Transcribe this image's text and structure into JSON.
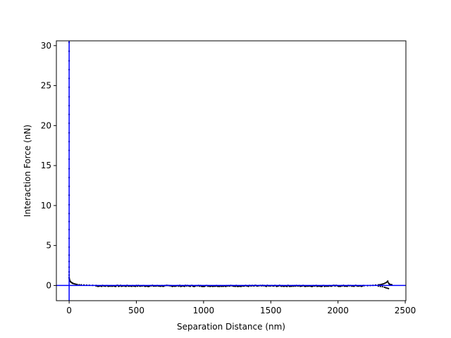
{
  "chart_data": {
    "type": "scatter",
    "title": "",
    "xlabel": "Separation Distance (nm)",
    "ylabel": "Interaction Force (nN)",
    "xlim": [
      -95,
      2505
    ],
    "ylim": [
      -1.9,
      30.6
    ],
    "xticks": [
      0,
      500,
      1000,
      1500,
      2000,
      2500
    ],
    "yticks": [
      0,
      5,
      10,
      15,
      20,
      25,
      30
    ],
    "grid": false,
    "reference_lines": {
      "x": 0,
      "y": 0,
      "color": "#0000ff"
    },
    "marker_color": "#000000",
    "approach_curve": {
      "x": [
        0,
        0,
        0,
        0,
        0,
        0,
        0,
        0,
        0,
        0,
        0,
        0,
        0,
        0,
        0,
        0,
        0,
        0,
        0,
        0,
        0,
        0,
        0,
        0,
        0,
        0,
        0,
        0,
        0,
        0,
        1,
        2,
        4,
        7,
        10,
        15,
        20,
        25,
        30,
        40,
        50,
        60,
        75,
        90,
        110,
        130,
        150,
        175,
        200
      ],
      "y": [
        30.4,
        29.3,
        28.1,
        27.0,
        25.9,
        24.8,
        23.6,
        22.5,
        21.4,
        20.3,
        19.1,
        18.0,
        16.9,
        15.8,
        14.6,
        13.5,
        12.4,
        11.3,
        10.1,
        9.0,
        8.0,
        7.0,
        5.9,
        4.8,
        3.8,
        3.0,
        2.3,
        1.7,
        1.3,
        1.0,
        0.85,
        0.75,
        0.65,
        0.55,
        0.48,
        0.4,
        0.34,
        0.3,
        0.25,
        0.2,
        0.16,
        0.13,
        0.1,
        0.08,
        0.06,
        0.04,
        0.03,
        0.02,
        0.01
      ]
    },
    "baseline": {
      "x_start": 200,
      "x_end": 2200,
      "y_mean": -0.05,
      "y_jitter": 0.07
    },
    "retract_tail": {
      "x": [
        2220,
        2240,
        2260,
        2280,
        2300,
        2310,
        2320,
        2330,
        2340,
        2350,
        2360,
        2365,
        2370,
        2375,
        2380,
        2385,
        2390,
        2395,
        2400,
        2300,
        2315,
        2330,
        2345,
        2355,
        2365,
        2375
      ],
      "y": [
        -0.02,
        0.0,
        0.02,
        0.05,
        0.08,
        0.1,
        0.13,
        0.17,
        0.22,
        0.3,
        0.38,
        0.45,
        0.55,
        0.35,
        0.2,
        0.15,
        0.12,
        0.1,
        0.1,
        -0.08,
        -0.12,
        -0.15,
        -0.22,
        -0.28,
        -0.33,
        -0.38
      ]
    }
  }
}
